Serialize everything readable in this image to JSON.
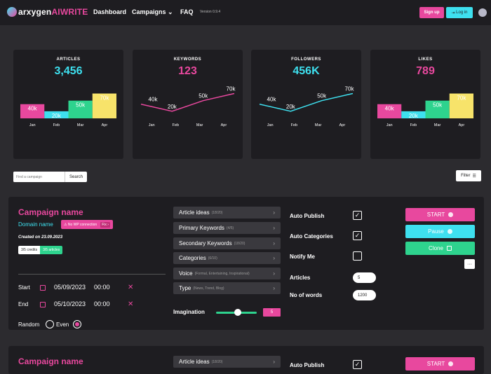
{
  "nav": {
    "logo_main": "arxygen",
    "logo_ai": "AIWRITE",
    "links": [
      "Dashboard",
      "Campaigns",
      "FAQ"
    ],
    "campaigns_chevron": "chevron-down-icon",
    "version": "Version 0.9.4",
    "signup": "Sign up",
    "login": "Log in"
  },
  "stats": [
    {
      "title": "ARTICLES",
      "value": "3,456",
      "color": "#3ee0ef"
    },
    {
      "title": "KEYWORDS",
      "value": "123",
      "color": "#e8489e"
    },
    {
      "title": "FOLLOWERS",
      "value": "456K",
      "color": "#3ee0ef"
    },
    {
      "title": "LIKES",
      "value": "789",
      "color": "#e8489e"
    }
  ],
  "chart_data": [
    {
      "type": "bar",
      "categories": [
        "Jan",
        "Feb",
        "Mar",
        "Apr"
      ],
      "values": [
        40,
        20,
        50,
        70
      ],
      "data_labels": [
        "40k",
        "20k",
        "50k",
        "70k"
      ],
      "colors": [
        "#e8489e",
        "#3ee0ef",
        "#2ed38e",
        "#f7e36a"
      ],
      "ylim": [
        0,
        75
      ]
    },
    {
      "type": "line",
      "categories": [
        "Jan",
        "Feb",
        "Mar",
        "Apr"
      ],
      "values": [
        40,
        20,
        50,
        70
      ],
      "data_labels": [
        "40k",
        "20k",
        "50k",
        "70k"
      ],
      "color": "#e8489e",
      "ylim": [
        0,
        75
      ]
    },
    {
      "type": "line",
      "categories": [
        "Jan",
        "Feb",
        "Mar",
        "Apr"
      ],
      "values": [
        40,
        20,
        50,
        70
      ],
      "data_labels": [
        "40k",
        "20k",
        "50k",
        "70k"
      ],
      "color": "#3ee0ef",
      "ylim": [
        0,
        75
      ]
    },
    {
      "type": "bar",
      "categories": [
        "Jan",
        "Feb",
        "Mar",
        "Apr"
      ],
      "values": [
        40,
        20,
        50,
        70
      ],
      "data_labels": [
        "40k",
        "20k",
        "50k",
        "70k"
      ],
      "colors": [
        "#e8489e",
        "#3ee0ef",
        "#2ed38e",
        "#f7e36a"
      ],
      "ylim": [
        0,
        75
      ]
    }
  ],
  "search": {
    "placeholder": "Find a campaign",
    "button": "Search"
  },
  "filter": {
    "label": "Filter",
    "icon": "sliders-icon"
  },
  "campaign": {
    "name": "Campaign name",
    "domain": "Domain name",
    "warning": "No WP connection",
    "fix": "Fix",
    "created": "Created on 23.09.2023",
    "credits": "3/5 credits",
    "articles": "3/5 articles",
    "start_label": "Start",
    "start_date": "05/09/2023",
    "start_time": "00:00",
    "end_label": "End",
    "end_date": "05/10/2023",
    "end_time": "00:00",
    "random": "Random",
    "even": "Even",
    "options": [
      {
        "label": "Article ideas",
        "count": "(18/20)"
      },
      {
        "label": "Primary Keywords",
        "count": "(4/5)"
      },
      {
        "label": "Secondary Keywords",
        "count": "(18/20)"
      },
      {
        "label": "Categories",
        "count": "(6/10)"
      },
      {
        "label": "Voice",
        "count": "(Formal, Entertaining, Inspirational)"
      },
      {
        "label": "Type",
        "count": "(News, Trend, Blog)"
      }
    ],
    "imagination": "Imagination",
    "imagination_value": "5",
    "auto_publish": "Auto Publish",
    "auto_categories": "Auto Categories",
    "notify_me": "Notify Me",
    "articles_label": "Articles",
    "articles_value": "5",
    "words_label": "No of words",
    "words_value": "1200",
    "start_btn": "START",
    "pause_btn": "Pause",
    "clone_btn": "Clone",
    "more_btn": "···"
  },
  "campaign2": {
    "name": "Campaign name",
    "option1_label": "Article ideas",
    "option1_count": "(18/20)",
    "auto_publish": "Auto Publish",
    "start_btn": "START"
  }
}
